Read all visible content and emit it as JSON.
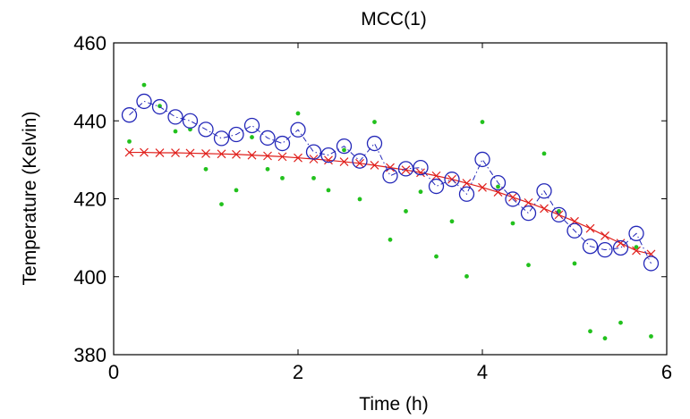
{
  "chart_data": {
    "type": "scatter",
    "title": "MCC(1)",
    "xlabel": "Time (h)",
    "ylabel": "Temperature (Kelvin)",
    "xlim": [
      0,
      6
    ],
    "ylim": [
      380,
      460
    ],
    "xticks": [
      0,
      2,
      4,
      6
    ],
    "yticks": [
      380,
      400,
      420,
      440,
      460
    ],
    "grid": false,
    "series": [
      {
        "style": "green dots",
        "color": "#22c11d",
        "x": [
          0.17,
          0.33,
          0.5,
          0.67,
          0.83,
          1.0,
          1.17,
          1.33,
          1.5,
          1.67,
          1.83,
          2.0,
          2.17,
          2.33,
          2.5,
          2.67,
          2.83,
          3.0,
          3.17,
          3.33,
          3.5,
          3.67,
          3.83,
          4.0,
          4.17,
          4.33,
          4.5,
          4.67,
          4.83,
          5.0,
          5.17,
          5.33,
          5.5,
          5.67,
          5.83
        ],
        "y": [
          434.7,
          449.2,
          443.8,
          437.3,
          437.8,
          427.6,
          418.6,
          422.2,
          435.8,
          427.6,
          425.3,
          441.9,
          425.3,
          422.2,
          432.5,
          419.9,
          439.7,
          409.5,
          416.8,
          421.8,
          405.2,
          414.2,
          400.1,
          439.7,
          423.1,
          413.7,
          403.0,
          431.6,
          416.8,
          403.4,
          386.0,
          384.2,
          388.2,
          407.6,
          384.7
        ]
      },
      {
        "style": "blue circles joined by dash-dot line",
        "color": "#2327b8",
        "x": [
          0.17,
          0.33,
          0.5,
          0.67,
          0.83,
          1.0,
          1.17,
          1.33,
          1.5,
          1.67,
          1.83,
          2.0,
          2.17,
          2.33,
          2.5,
          2.67,
          2.83,
          3.0,
          3.17,
          3.33,
          3.5,
          3.67,
          3.83,
          4.0,
          4.17,
          4.33,
          4.5,
          4.67,
          4.83,
          5.0,
          5.17,
          5.33,
          5.5,
          5.67,
          5.83
        ],
        "y": [
          441.5,
          445.0,
          443.6,
          441.0,
          440.0,
          437.8,
          435.5,
          436.5,
          438.8,
          435.6,
          434.2,
          437.7,
          432.0,
          431.2,
          433.5,
          429.7,
          434.2,
          425.9,
          427.7,
          428.0,
          423.2,
          425.0,
          421.2,
          430.1,
          424.1,
          419.9,
          416.3,
          422.0,
          415.9,
          411.8,
          407.8,
          406.9,
          407.4,
          411.1,
          403.4
        ]
      },
      {
        "style": "red x markers joined by line",
        "color": "#e0201c",
        "x": [
          0.17,
          0.33,
          0.5,
          0.67,
          0.83,
          1.0,
          1.17,
          1.33,
          1.5,
          1.67,
          1.83,
          2.0,
          2.17,
          2.33,
          2.5,
          2.67,
          2.83,
          3.0,
          3.17,
          3.33,
          3.5,
          3.67,
          3.83,
          4.0,
          4.17,
          4.33,
          4.5,
          4.67,
          4.83,
          5.0,
          5.17,
          5.33,
          5.5,
          5.67,
          5.83
        ],
        "y": [
          431.9,
          431.9,
          431.8,
          431.8,
          431.7,
          431.6,
          431.5,
          431.4,
          431.2,
          431.0,
          430.8,
          430.5,
          430.2,
          429.9,
          429.5,
          429.1,
          428.6,
          428.0,
          427.4,
          426.7,
          425.9,
          425.0,
          424.0,
          422.9,
          421.7,
          420.4,
          419.0,
          417.5,
          415.9,
          414.2,
          412.4,
          410.5,
          408.6,
          406.7,
          405.8
        ]
      }
    ]
  }
}
